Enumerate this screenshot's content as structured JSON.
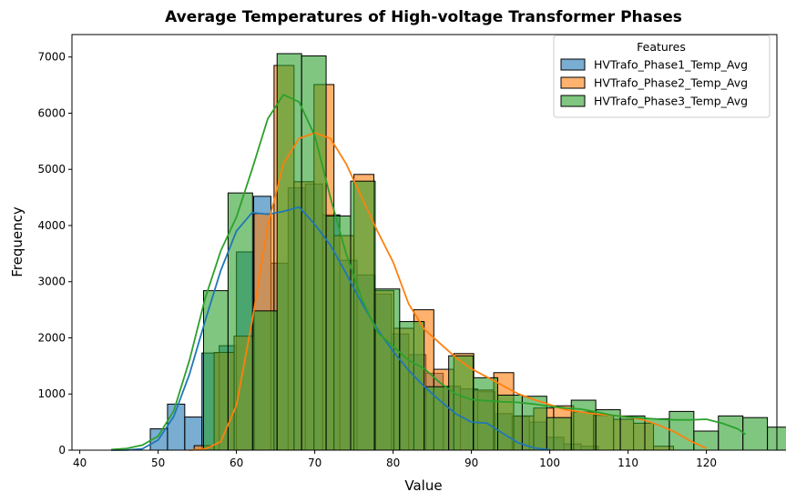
{
  "chart_data": {
    "type": "histogram",
    "title": "Average Temperatures of High-voltage Transformer Phases",
    "xlabel": "Value",
    "ylabel": "Frequency",
    "xlim": [
      39,
      129
    ],
    "ylim": [
      0,
      7400
    ],
    "xticks": [
      40,
      50,
      60,
      70,
      80,
      90,
      100,
      110,
      120
    ],
    "yticks": [
      0,
      1000,
      2000,
      3000,
      4000,
      5000,
      6000,
      7000
    ],
    "legend": {
      "title": "Features",
      "placement": "top-right"
    },
    "series": [
      {
        "name": "HVTrafo_Phase1_Temp_Avg",
        "color": "#1f77b4",
        "bin_start": 49,
        "bin_width": 2.2,
        "counts": [
          380,
          820,
          590,
          1730,
          1860,
          3530,
          4520,
          3330,
          4670,
          4740,
          4190,
          3380,
          3120,
          2780,
          2070,
          1700,
          1370,
          1140,
          1090,
          1040,
          650,
          600,
          500,
          230,
          110,
          70
        ],
        "kde": [
          [
            44,
            0
          ],
          [
            46,
            2
          ],
          [
            48,
            25
          ],
          [
            50,
            180
          ],
          [
            52,
            600
          ],
          [
            54,
            1350
          ],
          [
            56,
            2300
          ],
          [
            58,
            3200
          ],
          [
            60,
            3900
          ],
          [
            62,
            4230
          ],
          [
            64,
            4200
          ],
          [
            66,
            4250
          ],
          [
            68,
            4330
          ],
          [
            70,
            4020
          ],
          [
            72,
            3650
          ],
          [
            74,
            3150
          ],
          [
            76,
            2620
          ],
          [
            78,
            2150
          ],
          [
            80,
            1760
          ],
          [
            82,
            1420
          ],
          [
            84,
            1130
          ],
          [
            86,
            880
          ],
          [
            88,
            650
          ],
          [
            90,
            500
          ],
          [
            92,
            480
          ],
          [
            94,
            300
          ],
          [
            96,
            130
          ],
          [
            98,
            40
          ],
          [
            100,
            5
          ]
        ]
      },
      {
        "name": "HVTrafo_Phase2_Temp_Avg",
        "color": "#ff7f0e",
        "bin_start": 54.6,
        "bin_width": 2.55,
        "counts": [
          80,
          1740,
          2030,
          4210,
          6850,
          4780,
          6510,
          3820,
          4910,
          2840,
          2170,
          2500,
          1440,
          1720,
          1070,
          1380,
          610,
          750,
          790,
          680,
          620,
          550,
          480,
          70
        ],
        "kde": [
          [
            54,
            0
          ],
          [
            56,
            20
          ],
          [
            58,
            150
          ],
          [
            60,
            800
          ],
          [
            62,
            2300
          ],
          [
            64,
            4000
          ],
          [
            66,
            5100
          ],
          [
            68,
            5550
          ],
          [
            70,
            5650
          ],
          [
            72,
            5550
          ],
          [
            74,
            5100
          ],
          [
            76,
            4500
          ],
          [
            78,
            3900
          ],
          [
            80,
            3350
          ],
          [
            82,
            2600
          ],
          [
            84,
            2150
          ],
          [
            86,
            1900
          ],
          [
            88,
            1650
          ],
          [
            90,
            1450
          ],
          [
            92,
            1300
          ],
          [
            94,
            1150
          ],
          [
            96,
            1000
          ],
          [
            98,
            900
          ],
          [
            100,
            810
          ],
          [
            102,
            720
          ],
          [
            104,
            680
          ],
          [
            106,
            640
          ],
          [
            108,
            620
          ],
          [
            110,
            590
          ],
          [
            112,
            540
          ],
          [
            114,
            440
          ],
          [
            116,
            320
          ],
          [
            118,
            160
          ],
          [
            120,
            30
          ]
        ]
      },
      {
        "name": "HVTrafo_Phase3_Temp_Avg",
        "color": "#2ca02c",
        "bin_start": 55.8,
        "bin_width": 3.13,
        "counts": [
          2840,
          4580,
          2480,
          7060,
          7020,
          4170,
          4790,
          2870,
          2290,
          1130,
          1680,
          1290,
          980,
          960,
          580,
          890,
          720,
          610,
          560,
          690,
          340,
          610,
          580,
          410
        ],
        "kde": [
          [
            44,
            10
          ],
          [
            46,
            30
          ],
          [
            48,
            90
          ],
          [
            50,
            250
          ],
          [
            52,
            700
          ],
          [
            54,
            1600
          ],
          [
            56,
            2700
          ],
          [
            58,
            3550
          ],
          [
            60,
            4150
          ],
          [
            62,
            5000
          ],
          [
            64,
            5900
          ],
          [
            66,
            6330
          ],
          [
            68,
            6200
          ],
          [
            70,
            5600
          ],
          [
            72,
            4500
          ],
          [
            74,
            3500
          ],
          [
            76,
            2700
          ],
          [
            78,
            2100
          ],
          [
            80,
            1850
          ],
          [
            82,
            1600
          ],
          [
            84,
            1450
          ],
          [
            86,
            1200
          ],
          [
            88,
            1000
          ],
          [
            90,
            900
          ],
          [
            92,
            880
          ],
          [
            94,
            860
          ],
          [
            96,
            850
          ],
          [
            98,
            820
          ],
          [
            100,
            780
          ],
          [
            102,
            750
          ],
          [
            104,
            730
          ],
          [
            106,
            680
          ],
          [
            108,
            620
          ],
          [
            110,
            590
          ],
          [
            112,
            570
          ],
          [
            114,
            550
          ],
          [
            116,
            540
          ],
          [
            118,
            540
          ],
          [
            120,
            550
          ],
          [
            122,
            480
          ],
          [
            124,
            380
          ],
          [
            125,
            280
          ]
        ]
      }
    ]
  }
}
